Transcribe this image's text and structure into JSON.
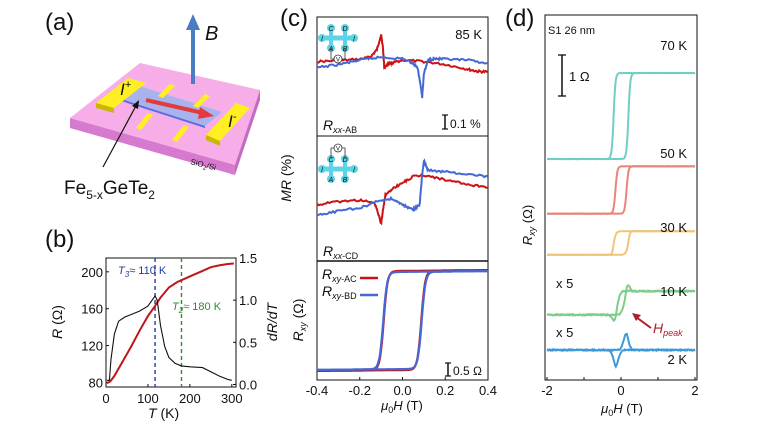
{
  "panel_labels": {
    "a": "(a)",
    "b": "(b)",
    "c": "(c)",
    "d": "(d)"
  },
  "panel_a": {
    "field_label": "B",
    "current_in": "I",
    "current_in_sup": "+",
    "current_out": "I",
    "current_out_sup": "-",
    "substrate": "SiO",
    "substrate_sub": "2",
    "substrate_tail": "/Si",
    "material_main": "Fe",
    "material_sub1": "5-x",
    "material_mid": "GeTe",
    "material_sub2": "2",
    "colors": {
      "substrate": "#f6a6e6",
      "substrate_side": "#d97ad0",
      "flake": "#a9b4ee",
      "electrode": "#ffee22",
      "arrow_current": "#e23b3b",
      "arrow_field": "#4a7cc4"
    }
  },
  "chart_data": [
    {
      "id": "b",
      "type": "line",
      "xlabel": "T (K)",
      "ylabel": "R (Ω)",
      "y2label": "dR/dT",
      "xlim": [
        0,
        310
      ],
      "ylim": [
        75,
        215
      ],
      "y2lim": [
        -0.03,
        1.5
      ],
      "xticks": [
        "0",
        "100",
        "200",
        "300"
      ],
      "xtick_values": [
        0,
        100,
        200,
        300
      ],
      "yticks": [
        "80",
        "120",
        "160",
        "200"
      ],
      "ytick_values": [
        80,
        120,
        160,
        200
      ],
      "y2ticks": [
        "0.0",
        "0.5",
        "1.0",
        "1.5"
      ],
      "y2tick_values": [
        0,
        0.5,
        1.0,
        1.5
      ],
      "annotations": [
        {
          "text": "T3 ≈ 110 K",
          "sym": "T",
          "sub": "3",
          "rest": "≈ 110 K",
          "x": 117,
          "color": "#1f3f9c"
        },
        {
          "text": "T2 ≈ 180 K",
          "sym": "T",
          "sub": "2",
          "rest": "≈ 180 K",
          "x": 180,
          "color": "#2e8b2e"
        }
      ],
      "series": [
        {
          "name": "R",
          "axis": "left",
          "color": "#c0161a",
          "x": [
            2,
            10,
            20,
            40,
            60,
            80,
            100,
            117,
            130,
            150,
            170,
            190,
            210,
            230,
            250,
            270,
            290,
            305
          ],
          "y": [
            79,
            81,
            87,
            103,
            119,
            136,
            152,
            163,
            172,
            183,
            189,
            193,
            197,
            201,
            205,
            207,
            208.5,
            209
          ]
        },
        {
          "name": "dR/dT",
          "axis": "right",
          "color": "#111111",
          "x": [
            2,
            8,
            12,
            20,
            30,
            45,
            60,
            80,
            100,
            110,
            117,
            122,
            130,
            140,
            150,
            165,
            180,
            200,
            230,
            250,
            270,
            290,
            300
          ],
          "y": [
            0.05,
            0.05,
            0.3,
            0.6,
            0.75,
            0.8,
            0.83,
            0.87,
            0.93,
            1.0,
            1.05,
            1.0,
            0.7,
            0.45,
            0.32,
            0.25,
            0.22,
            0.21,
            0.2,
            0.15,
            0.1,
            0.06,
            0.05
          ]
        }
      ]
    },
    {
      "id": "c-top",
      "type": "line",
      "label": "R_xx-AB",
      "label_main": "R",
      "label_sub": "xx",
      "label_tail": "-AB",
      "temperature": "85 K",
      "scale_bar": "0.1 %",
      "xlim": [
        -0.4,
        0.4
      ],
      "ylim": [
        -0.25,
        0.15
      ],
      "inset_letters": [
        "C",
        "D",
        "I",
        "I",
        "A",
        "B",
        "V"
      ],
      "series": [
        {
          "name": "red sweep",
          "color": "#cc1212",
          "x": [
            -0.4,
            -0.3,
            -0.2,
            -0.15,
            -0.12,
            -0.1,
            -0.092,
            -0.085,
            -0.07,
            -0.05,
            0,
            0.1,
            0.2,
            0.3,
            0.35,
            0.4
          ],
          "y": [
            0,
            0.003,
            0.008,
            0.015,
            0.04,
            0.09,
            0.05,
            -0.02,
            -0.01,
            -0.005,
            0.005,
            0,
            -0.01,
            -0.025,
            -0.033,
            -0.035
          ]
        },
        {
          "name": "blue sweep",
          "color": "#4468d6",
          "x": [
            -0.4,
            -0.3,
            -0.2,
            -0.1,
            0,
            0.05,
            0.07,
            0.085,
            0.092,
            0.1,
            0.12,
            0.15,
            0.2,
            0.3,
            0.4
          ],
          "y": [
            -0.02,
            -0.01,
            0.005,
            0.015,
            0.01,
            -0.005,
            -0.02,
            -0.08,
            -0.12,
            -0.04,
            0.005,
            0.01,
            0.008,
            0.005,
            -0.005
          ]
        }
      ]
    },
    {
      "id": "c-mid",
      "type": "line",
      "label": "R_xx-CD",
      "label_main": "R",
      "label_sub": "xx",
      "label_tail": "-CD",
      "xlim": [
        -0.4,
        0.4
      ],
      "ylim": [
        -0.2,
        0.2
      ],
      "inset_letters": [
        "V",
        "C",
        "D",
        "I",
        "I",
        "A",
        "B"
      ],
      "series": [
        {
          "name": "red sweep",
          "color": "#cc1212",
          "x": [
            -0.4,
            -0.3,
            -0.2,
            -0.13,
            -0.1,
            -0.09,
            -0.08,
            -0.05,
            0,
            0.05,
            0.1,
            0.2,
            0.3,
            0.4
          ],
          "y": [
            -0.02,
            -0.01,
            -0.005,
            -0.015,
            -0.08,
            -0.03,
            0.01,
            0.03,
            0.05,
            0.07,
            0.075,
            0.06,
            0.045,
            0.035
          ]
        },
        {
          "name": "blue sweep",
          "color": "#4468d6",
          "x": [
            -0.4,
            -0.3,
            -0.2,
            -0.1,
            -0.05,
            0,
            0.05,
            0.08,
            0.09,
            0.1,
            0.12,
            0.2,
            0.3,
            0.4
          ],
          "y": [
            -0.055,
            -0.04,
            -0.03,
            -0.005,
            0,
            -0.02,
            -0.035,
            -0.02,
            0.06,
            0.12,
            0.09,
            0.085,
            0.08,
            0.07
          ]
        }
      ]
    },
    {
      "id": "c-bot",
      "type": "line",
      "ylabel": "R_xy (Ω)",
      "xlabel": "μ0H (T)",
      "xlim": [
        -0.4,
        0.4
      ],
      "ylim": [
        -1.2,
        1.2
      ],
      "xticks": [
        "-0.4",
        "-0.2",
        "0.0",
        "0.2",
        "0.4"
      ],
      "xtick_values": [
        -0.4,
        -0.2,
        0,
        0.2,
        0.4
      ],
      "scale_bar": "0.5 Ω",
      "legend": [
        {
          "label": "R_xy-AC",
          "main": "R",
          "sub": "xy",
          "tail": "-AC",
          "color": "#cc1212"
        },
        {
          "label": "R_xy-BD",
          "main": "R",
          "sub": "xy",
          "tail": "-BD",
          "color": "#4468d6"
        }
      ],
      "series": [
        {
          "name": "R_xy-AC",
          "color": "#cc1212",
          "coercive_field": 0.088,
          "saturation": 1.0
        },
        {
          "name": "R_xy-BD",
          "color": "#4468d6",
          "coercive_field": 0.09,
          "saturation": 0.98
        }
      ]
    },
    {
      "id": "d",
      "type": "line",
      "title": "S1 26 nm",
      "ylabel": "R_xy (Ω)",
      "xlabel": "μ0H (T)",
      "xlim": [
        -2,
        2
      ],
      "xticks": [
        "-2",
        "0",
        "2"
      ],
      "xtick_values": [
        -2,
        0,
        2
      ],
      "scale_bar": "1 Ω",
      "annotation": {
        "text": "H_peak",
        "main": "H",
        "sub": "peak",
        "color": "#b01c2a"
      },
      "series": [
        {
          "name": "70 K",
          "label": "70 K",
          "color": "#6fcfc4",
          "multiplier": "",
          "coercive_field": 0.2,
          "step": 2.0,
          "peak": 0
        },
        {
          "name": "50 K",
          "label": "50 K",
          "color": "#e8857a",
          "multiplier": "",
          "coercive_field": 0.15,
          "step": 1.1,
          "peak": 0
        },
        {
          "name": "30 K",
          "label": "30 K",
          "color": "#f0c47a",
          "multiplier": "",
          "coercive_field": 0.2,
          "step": 0.55,
          "peak": 0.05
        },
        {
          "name": "10 K",
          "label": "10 K",
          "color": "#7dcc8a",
          "multiplier": "x 5",
          "coercive_field": 0.15,
          "step": 0.55,
          "peak": 0.45
        },
        {
          "name": "2 K",
          "label": "2 K",
          "color": "#3d9ad6",
          "multiplier": "x 5",
          "coercive_field": 0.15,
          "step": 0.0,
          "peak": 0.5
        }
      ]
    }
  ]
}
